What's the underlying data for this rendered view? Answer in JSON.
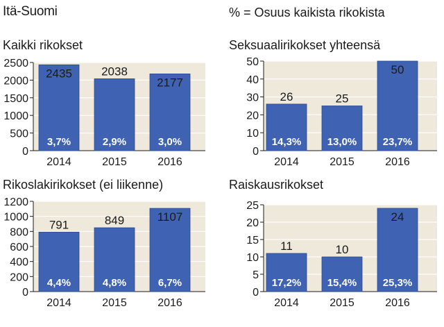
{
  "header": {
    "region": "Itä-Suomi",
    "legend_note": "% = Osuus kaikista rikokista"
  },
  "colors": {
    "bar": "#3f63b2",
    "plot_bg": "#efe9dc",
    "grid": "#ffffff",
    "text": "#1a1a1a",
    "pct_text": "#ffffff"
  },
  "chart_data": [
    {
      "type": "bar",
      "title": "Kaikki rikokset",
      "title_suffix": "",
      "categories": [
        "2014",
        "2015",
        "2016"
      ],
      "values": [
        2435,
        2038,
        2177
      ],
      "value_labels": [
        "2435",
        "2038",
        "2177"
      ],
      "percent_labels": [
        "3,7%",
        "2,9%",
        "3,0%"
      ],
      "ylim": [
        0,
        2500
      ],
      "yticks": [
        0,
        500,
        1000,
        1500,
        2000,
        2500
      ],
      "grid": true
    },
    {
      "type": "bar",
      "title": "Seksuaalirikokset yhteensä",
      "title_suffix": "",
      "categories": [
        "2014",
        "2015",
        "2016"
      ],
      "values": [
        26,
        25,
        50
      ],
      "value_labels": [
        "26",
        "25",
        "50"
      ],
      "percent_labels": [
        "14,3%",
        "13,0%",
        "23,7%"
      ],
      "ylim": [
        0,
        50
      ],
      "yticks": [
        0,
        10,
        20,
        30,
        40,
        50
      ],
      "grid": true
    },
    {
      "type": "bar",
      "title": "Rikoslakirikokset",
      "title_suffix": " (ei liikenne)",
      "categories": [
        "2014",
        "2015",
        "2016"
      ],
      "values": [
        791,
        849,
        1107
      ],
      "value_labels": [
        "791",
        "849",
        "1107"
      ],
      "percent_labels": [
        "4,4%",
        "4,8%",
        "6,7%"
      ],
      "ylim": [
        0,
        1200
      ],
      "yticks": [
        0,
        200,
        400,
        600,
        800,
        1000,
        1200
      ],
      "grid": true
    },
    {
      "type": "bar",
      "title": "Raiskausrikokset",
      "title_suffix": "",
      "categories": [
        "2014",
        "2015",
        "2016"
      ],
      "values": [
        11,
        10,
        24
      ],
      "value_labels": [
        "11",
        "10",
        "24"
      ],
      "percent_labels": [
        "17,2%",
        "15,4%",
        "25,3%"
      ],
      "ylim": [
        0,
        25
      ],
      "yticks": [
        0,
        5,
        10,
        15,
        20,
        25
      ],
      "grid": true
    }
  ]
}
